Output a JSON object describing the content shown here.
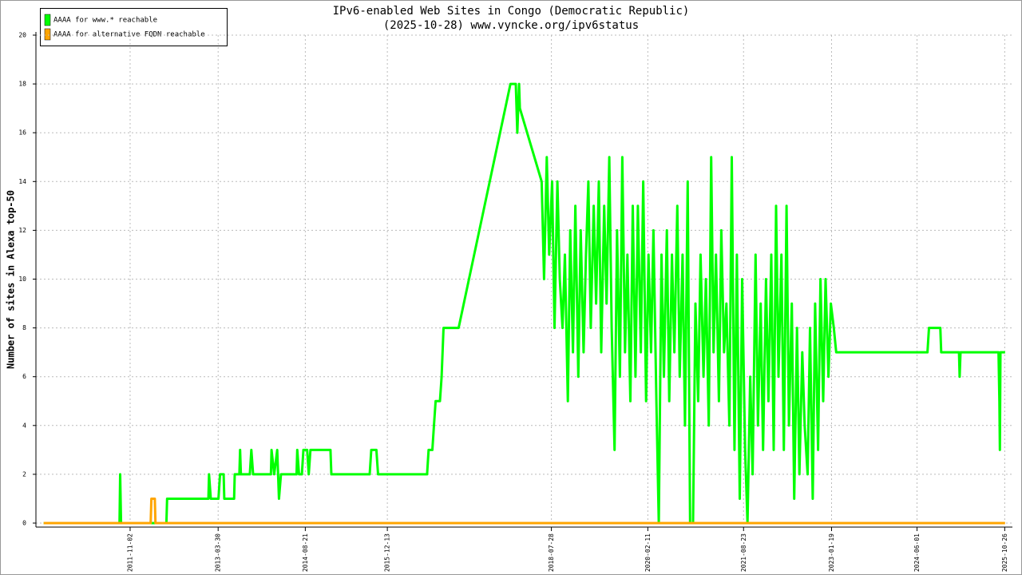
{
  "chart_data": {
    "type": "line",
    "title": "IPv6-enabled Web Sites in Congo (Democratic Republic)",
    "subtitle": "(2025-10-28) www.vyncke.org/ipv6status",
    "y_label": "Number of sites in Alexa top-50",
    "xlim": [
      "2010-05-01",
      "2025-12-10"
    ],
    "xticks": [
      "2011-11-02",
      "2013-03-30",
      "2014-08-21",
      "2015-12-13",
      "2018-07-28",
      "2020-02-11",
      "2021-08-23",
      "2023-01-19",
      "2024-06-01",
      "2025-10-26"
    ],
    "ylim": [
      0,
      20
    ],
    "yticks": [
      0,
      2,
      4,
      6,
      8,
      10,
      12,
      14,
      16,
      18,
      20
    ],
    "grid": true,
    "legend": "upper left",
    "series": [
      {
        "name": "AAAA for www.* reachable",
        "color": "#00ff00",
        "x": [
          "2010-06-15",
          "2011-09-01",
          "2011-09-05",
          "2011-09-10",
          "2012-06-01",
          "2012-06-05",
          "2013-02-01",
          "2013-02-05",
          "2013-02-15",
          "2013-04-01",
          "2013-04-10",
          "2013-05-01",
          "2013-05-05",
          "2013-07-01",
          "2013-07-05",
          "2013-08-01",
          "2013-08-05",
          "2013-08-10",
          "2013-10-01",
          "2013-10-10",
          "2013-10-20",
          "2014-02-01",
          "2014-02-05",
          "2014-02-20",
          "2014-03-10",
          "2014-03-20",
          "2014-04-01",
          "2014-07-01",
          "2014-07-05",
          "2014-07-15",
          "2014-08-01",
          "2014-08-10",
          "2014-09-01",
          "2014-09-10",
          "2014-09-20",
          "2015-01-15",
          "2015-01-20",
          "2015-09-01",
          "2015-09-10",
          "2015-10-10",
          "2015-10-20",
          "2016-08-01",
          "2016-08-10",
          "2016-09-01",
          "2016-09-10",
          "2016-09-20",
          "2016-10-15",
          "2016-10-25",
          "2016-11-05",
          "2017-02-01",
          "2017-12-01",
          "2018-01-01",
          "2018-01-10",
          "2018-01-20",
          "2018-01-25",
          "2018-06-01",
          "2018-06-15",
          "2018-07-01",
          "2018-07-15",
          "2018-08-01",
          "2018-08-15",
          "2018-09-01",
          "2018-09-15",
          "2018-10-01",
          "2018-10-15",
          "2018-11-01",
          "2018-11-15",
          "2018-12-01",
          "2018-12-15",
          "2019-01-01",
          "2019-01-15",
          "2019-02-01",
          "2019-02-15",
          "2019-03-01",
          "2019-03-15",
          "2019-04-01",
          "2019-04-15",
          "2019-05-01",
          "2019-05-15",
          "2019-06-01",
          "2019-06-15",
          "2019-07-01",
          "2019-07-15",
          "2019-08-01",
          "2019-08-15",
          "2019-09-01",
          "2019-09-15",
          "2019-10-01",
          "2019-10-15",
          "2019-11-01",
          "2019-11-15",
          "2019-12-01",
          "2019-12-15",
          "2020-01-01",
          "2020-01-15",
          "2020-02-01",
          "2020-02-15",
          "2020-03-01",
          "2020-03-15",
          "2020-04-01",
          "2020-04-15",
          "2020-05-01",
          "2020-05-15",
          "2020-06-01",
          "2020-06-15",
          "2020-07-01",
          "2020-07-15",
          "2020-08-01",
          "2020-08-15",
          "2020-09-01",
          "2020-09-15",
          "2020-10-01",
          "2020-10-15",
          "2020-11-01",
          "2020-11-15",
          "2020-12-01",
          "2020-12-15",
          "2021-01-01",
          "2021-01-15",
          "2021-02-01",
          "2021-02-15",
          "2021-03-01",
          "2021-03-15",
          "2021-04-01",
          "2021-04-15",
          "2021-05-01",
          "2021-05-15",
          "2021-06-01",
          "2021-06-15",
          "2021-07-01",
          "2021-07-15",
          "2021-08-01",
          "2021-08-15",
          "2021-09-01",
          "2021-09-15",
          "2021-10-01",
          "2021-10-15",
          "2021-11-01",
          "2021-11-15",
          "2021-12-01",
          "2021-12-15",
          "2022-01-01",
          "2022-01-15",
          "2022-02-01",
          "2022-02-15",
          "2022-03-01",
          "2022-03-15",
          "2022-04-01",
          "2022-04-15",
          "2022-05-01",
          "2022-05-15",
          "2022-06-01",
          "2022-06-15",
          "2022-07-01",
          "2022-07-15",
          "2022-08-01",
          "2022-08-15",
          "2022-09-01",
          "2022-09-15",
          "2022-10-01",
          "2022-10-15",
          "2022-11-01",
          "2022-11-15",
          "2022-12-01",
          "2022-12-15",
          "2023-01-01",
          "2023-01-15",
          "2023-02-01",
          "2023-02-15",
          "2024-08-01",
          "2024-08-10",
          "2024-10-15",
          "2024-10-20",
          "2025-02-01",
          "2025-02-05",
          "2025-02-10",
          "2025-09-20",
          "2025-09-25",
          "2025-09-28",
          "2025-10-01",
          "2025-10-28"
        ],
        "values": [
          0,
          0,
          2,
          0,
          0,
          1,
          1,
          2,
          1,
          1,
          2,
          2,
          1,
          1,
          2,
          2,
          3,
          2,
          2,
          3,
          2,
          2,
          3,
          2,
          3,
          1,
          2,
          2,
          3,
          2,
          2,
          3,
          3,
          2,
          3,
          3,
          2,
          2,
          3,
          3,
          2,
          2,
          3,
          3,
          4,
          5,
          5,
          6,
          8,
          8,
          18,
          18,
          16,
          18,
          17,
          14,
          10,
          15,
          11,
          14,
          8,
          14,
          10,
          8,
          11,
          5,
          12,
          7,
          13,
          6,
          12,
          7,
          11,
          14,
          8,
          13,
          9,
          14,
          7,
          13,
          9,
          15,
          8,
          3,
          12,
          6,
          15,
          7,
          11,
          5,
          13,
          6,
          13,
          7,
          14,
          5,
          11,
          7,
          12,
          5,
          0,
          11,
          6,
          12,
          5,
          11,
          7,
          13,
          6,
          11,
          4,
          14,
          0,
          0,
          9,
          5,
          11,
          6,
          10,
          4,
          15,
          7,
          11,
          5,
          12,
          7,
          9,
          4,
          15,
          3,
          11,
          1,
          10,
          3,
          0,
          6,
          2,
          11,
          4,
          9,
          3,
          10,
          5,
          11,
          3,
          13,
          6,
          11,
          3,
          13,
          4,
          9,
          1,
          8,
          2,
          7,
          4,
          2,
          8,
          1,
          9,
          3,
          10,
          5,
          10,
          6,
          9,
          8,
          7,
          7,
          8,
          8,
          7,
          7,
          6,
          7,
          7,
          5,
          3,
          7,
          7
        ]
      },
      {
        "name": "AAAA for alternative FQDN reachable",
        "color": "#ffa500",
        "x": [
          "2010-06-15",
          "2012-03-01",
          "2012-03-05",
          "2012-03-25",
          "2012-03-29",
          "2025-10-28"
        ],
        "values": [
          0,
          0,
          1,
          1,
          0,
          0
        ]
      }
    ]
  }
}
